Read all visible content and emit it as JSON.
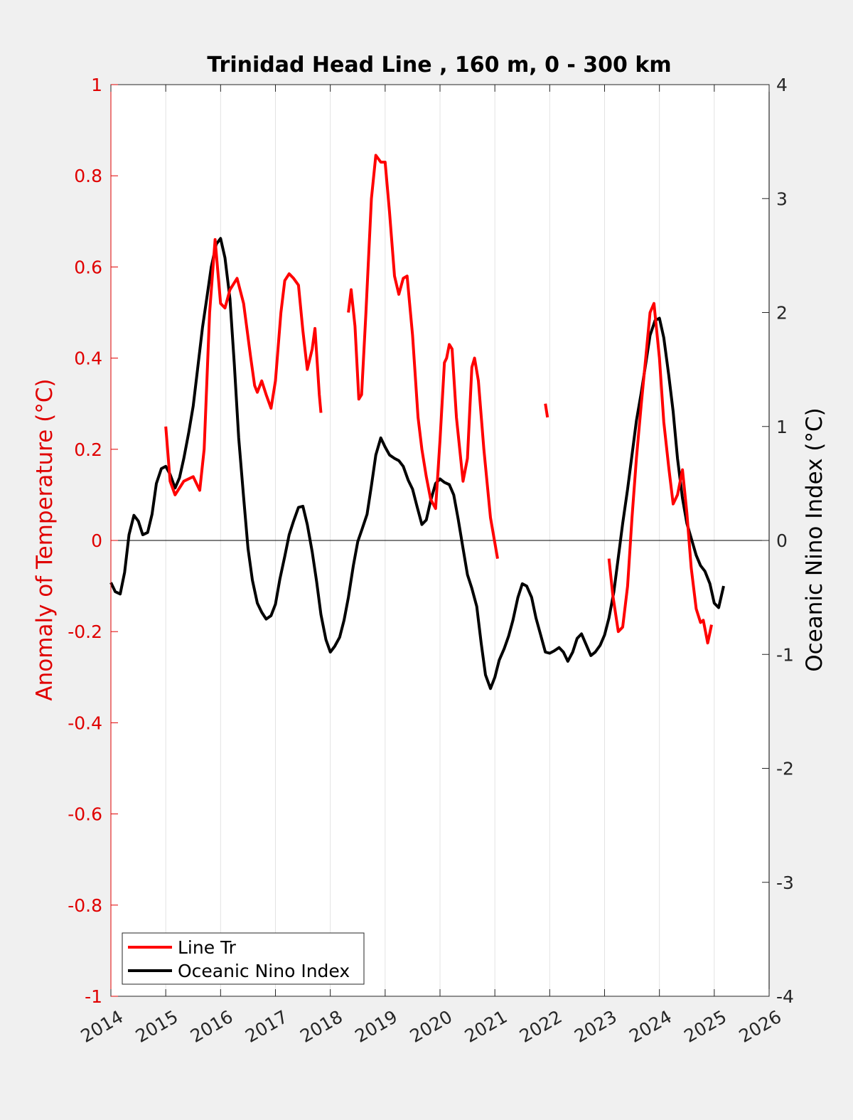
{
  "chart_data": {
    "type": "line",
    "title": "Trinidad Head Line , 160 m, 0 - 300 km",
    "xlabel": "",
    "ylabel_left": "Anomaly of Temperature (°C)",
    "ylabel_right": "Oceanic Nino Index (°C)",
    "xlim": [
      2014,
      2026
    ],
    "ylim_left": [
      -1,
      1
    ],
    "ylim_right": [
      -4,
      4
    ],
    "x_ticks": [
      "2014",
      "2015",
      "2016",
      "2017",
      "2018",
      "2019",
      "2020",
      "2021",
      "2022",
      "2023",
      "2024",
      "2025",
      "2026"
    ],
    "y_left_ticks": [
      "-1",
      "-0.8",
      "-0.6",
      "-0.4",
      "-0.2",
      "0",
      "0.2",
      "0.4",
      "0.6",
      "0.8",
      "1"
    ],
    "y_right_ticks": [
      "-4",
      "-3",
      "-2",
      "-1",
      "0",
      "1",
      "2",
      "3",
      "4"
    ],
    "grid": "vertical",
    "legend_position": "bottom-left",
    "zero_line": true,
    "colors": {
      "line_tr": "#ff0000",
      "oni": "#000000",
      "left_axis": "#e00000",
      "right_axis": "#000000"
    },
    "series": [
      {
        "name": "Line Tr",
        "axis": "left",
        "color": "#ff0000",
        "segments": [
          [
            [
              2015.0,
              0.25
            ],
            [
              2015.08,
              0.13
            ],
            [
              2015.17,
              0.1
            ],
            [
              2015.33,
              0.13
            ],
            [
              2015.5,
              0.14
            ],
            [
              2015.62,
              0.11
            ],
            [
              2015.7,
              0.2
            ],
            [
              2015.8,
              0.5
            ],
            [
              2015.9,
              0.66
            ],
            [
              2016.0,
              0.52
            ],
            [
              2016.08,
              0.51
            ],
            [
              2016.17,
              0.55
            ],
            [
              2016.3,
              0.575
            ],
            [
              2016.42,
              0.52
            ],
            [
              2016.55,
              0.4
            ],
            [
              2016.62,
              0.34
            ],
            [
              2016.67,
              0.325
            ],
            [
              2016.75,
              0.35
            ],
            [
              2016.83,
              0.32
            ],
            [
              2016.92,
              0.29
            ],
            [
              2017.0,
              0.35
            ],
            [
              2017.1,
              0.5
            ],
            [
              2017.17,
              0.57
            ],
            [
              2017.25,
              0.585
            ],
            [
              2017.33,
              0.575
            ],
            [
              2017.42,
              0.56
            ],
            [
              2017.5,
              0.46
            ],
            [
              2017.58,
              0.375
            ],
            [
              2017.67,
              0.42
            ],
            [
              2017.72,
              0.465
            ],
            [
              2017.8,
              0.32
            ],
            [
              2017.83,
              0.28
            ]
          ],
          [
            [
              2018.33,
              0.5
            ],
            [
              2018.38,
              0.55
            ],
            [
              2018.45,
              0.47
            ],
            [
              2018.52,
              0.31
            ],
            [
              2018.57,
              0.32
            ],
            [
              2018.65,
              0.5
            ],
            [
              2018.75,
              0.75
            ],
            [
              2018.83,
              0.845
            ],
            [
              2018.92,
              0.83
            ],
            [
              2019.0,
              0.83
            ],
            [
              2019.08,
              0.72
            ],
            [
              2019.17,
              0.58
            ],
            [
              2019.25,
              0.54
            ],
            [
              2019.33,
              0.575
            ],
            [
              2019.4,
              0.58
            ],
            [
              2019.5,
              0.45
            ],
            [
              2019.6,
              0.27
            ],
            [
              2019.67,
              0.2
            ],
            [
              2019.75,
              0.14
            ],
            [
              2019.83,
              0.09
            ],
            [
              2019.92,
              0.07
            ],
            [
              2020.0,
              0.22
            ],
            [
              2020.08,
              0.39
            ],
            [
              2020.12,
              0.4
            ],
            [
              2020.17,
              0.43
            ],
            [
              2020.22,
              0.42
            ],
            [
              2020.3,
              0.27
            ],
            [
              2020.42,
              0.13
            ],
            [
              2020.5,
              0.18
            ],
            [
              2020.58,
              0.38
            ],
            [
              2020.63,
              0.4
            ],
            [
              2020.7,
              0.35
            ],
            [
              2020.8,
              0.2
            ],
            [
              2020.92,
              0.05
            ],
            [
              2021.05,
              -0.04
            ]
          ],
          [
            [
              2021.92,
              0.3
            ],
            [
              2021.96,
              0.27
            ]
          ],
          [
            [
              2023.08,
              -0.04
            ],
            [
              2023.15,
              -0.12
            ],
            [
              2023.25,
              -0.2
            ],
            [
              2023.33,
              -0.19
            ],
            [
              2023.42,
              -0.1
            ],
            [
              2023.5,
              0.05
            ],
            [
              2023.58,
              0.18
            ],
            [
              2023.67,
              0.3
            ],
            [
              2023.75,
              0.4
            ],
            [
              2023.83,
              0.5
            ],
            [
              2023.9,
              0.52
            ],
            [
              2024.0,
              0.4
            ],
            [
              2024.08,
              0.26
            ],
            [
              2024.17,
              0.16
            ],
            [
              2024.25,
              0.08
            ],
            [
              2024.33,
              0.1
            ],
            [
              2024.42,
              0.155
            ],
            [
              2024.5,
              0.06
            ],
            [
              2024.58,
              -0.06
            ],
            [
              2024.67,
              -0.15
            ],
            [
              2024.75,
              -0.18
            ],
            [
              2024.8,
              -0.175
            ],
            [
              2024.88,
              -0.225
            ],
            [
              2024.95,
              -0.185
            ]
          ]
        ]
      },
      {
        "name": "Oceanic Nino Index",
        "axis": "right",
        "color": "#000000",
        "segments": [
          [
            [
              2014.0,
              -0.37
            ],
            [
              2014.08,
              -0.45
            ],
            [
              2014.17,
              -0.47
            ],
            [
              2014.25,
              -0.28
            ],
            [
              2014.33,
              0.05
            ],
            [
              2014.42,
              0.22
            ],
            [
              2014.5,
              0.17
            ],
            [
              2014.58,
              0.05
            ],
            [
              2014.67,
              0.07
            ],
            [
              2014.75,
              0.23
            ],
            [
              2014.83,
              0.5
            ],
            [
              2014.92,
              0.63
            ],
            [
              2015.0,
              0.65
            ],
            [
              2015.08,
              0.58
            ],
            [
              2015.17,
              0.46
            ],
            [
              2015.25,
              0.55
            ],
            [
              2015.33,
              0.72
            ],
            [
              2015.42,
              0.95
            ],
            [
              2015.5,
              1.18
            ],
            [
              2015.58,
              1.5
            ],
            [
              2015.67,
              1.87
            ],
            [
              2015.75,
              2.13
            ],
            [
              2015.83,
              2.4
            ],
            [
              2015.92,
              2.6
            ],
            [
              2016.0,
              2.65
            ],
            [
              2016.08,
              2.48
            ],
            [
              2016.17,
              2.12
            ],
            [
              2016.25,
              1.55
            ],
            [
              2016.33,
              0.9
            ],
            [
              2016.42,
              0.38
            ],
            [
              2016.5,
              -0.07
            ],
            [
              2016.58,
              -0.35
            ],
            [
              2016.67,
              -0.55
            ],
            [
              2016.75,
              -0.63
            ],
            [
              2016.83,
              -0.69
            ],
            [
              2016.92,
              -0.66
            ],
            [
              2017.0,
              -0.56
            ],
            [
              2017.08,
              -0.34
            ],
            [
              2017.17,
              -0.14
            ],
            [
              2017.25,
              0.05
            ],
            [
              2017.33,
              0.17
            ],
            [
              2017.42,
              0.29
            ],
            [
              2017.5,
              0.3
            ],
            [
              2017.58,
              0.14
            ],
            [
              2017.67,
              -0.1
            ],
            [
              2017.75,
              -0.36
            ],
            [
              2017.83,
              -0.65
            ],
            [
              2017.92,
              -0.87
            ],
            [
              2018.0,
              -0.98
            ],
            [
              2018.08,
              -0.93
            ],
            [
              2018.17,
              -0.85
            ],
            [
              2018.25,
              -0.7
            ],
            [
              2018.33,
              -0.5
            ],
            [
              2018.42,
              -0.22
            ],
            [
              2018.5,
              -0.01
            ],
            [
              2018.58,
              0.1
            ],
            [
              2018.67,
              0.23
            ],
            [
              2018.75,
              0.48
            ],
            [
              2018.83,
              0.75
            ],
            [
              2018.92,
              0.9
            ],
            [
              2019.0,
              0.82
            ],
            [
              2019.08,
              0.75
            ],
            [
              2019.17,
              0.72
            ],
            [
              2019.25,
              0.7
            ],
            [
              2019.33,
              0.65
            ],
            [
              2019.42,
              0.53
            ],
            [
              2019.5,
              0.45
            ],
            [
              2019.58,
              0.3
            ],
            [
              2019.67,
              0.14
            ],
            [
              2019.75,
              0.18
            ],
            [
              2019.83,
              0.35
            ],
            [
              2019.92,
              0.5
            ],
            [
              2020.0,
              0.54
            ],
            [
              2020.08,
              0.51
            ],
            [
              2020.17,
              0.49
            ],
            [
              2020.25,
              0.4
            ],
            [
              2020.33,
              0.19
            ],
            [
              2020.42,
              -0.07
            ],
            [
              2020.5,
              -0.3
            ],
            [
              2020.58,
              -0.42
            ],
            [
              2020.67,
              -0.58
            ],
            [
              2020.75,
              -0.9
            ],
            [
              2020.83,
              -1.18
            ],
            [
              2020.92,
              -1.3
            ],
            [
              2021.0,
              -1.2
            ],
            [
              2021.08,
              -1.05
            ],
            [
              2021.17,
              -0.95
            ],
            [
              2021.25,
              -0.84
            ],
            [
              2021.33,
              -0.7
            ],
            [
              2021.42,
              -0.5
            ],
            [
              2021.5,
              -0.38
            ],
            [
              2021.58,
              -0.4
            ],
            [
              2021.67,
              -0.5
            ],
            [
              2021.75,
              -0.68
            ],
            [
              2021.83,
              -0.82
            ],
            [
              2021.92,
              -0.98
            ],
            [
              2022.0,
              -0.99
            ],
            [
              2022.08,
              -0.97
            ],
            [
              2022.17,
              -0.94
            ],
            [
              2022.25,
              -0.98
            ],
            [
              2022.33,
              -1.06
            ],
            [
              2022.42,
              -0.98
            ],
            [
              2022.5,
              -0.86
            ],
            [
              2022.58,
              -0.82
            ],
            [
              2022.67,
              -0.92
            ],
            [
              2022.75,
              -1.01
            ],
            [
              2022.83,
              -0.98
            ],
            [
              2022.92,
              -0.92
            ],
            [
              2023.0,
              -0.83
            ],
            [
              2023.08,
              -0.68
            ],
            [
              2023.17,
              -0.45
            ],
            [
              2023.25,
              -0.15
            ],
            [
              2023.33,
              0.15
            ],
            [
              2023.42,
              0.45
            ],
            [
              2023.5,
              0.75
            ],
            [
              2023.58,
              1.05
            ],
            [
              2023.67,
              1.3
            ],
            [
              2023.75,
              1.55
            ],
            [
              2023.83,
              1.8
            ],
            [
              2023.92,
              1.93
            ],
            [
              2024.0,
              1.95
            ],
            [
              2024.08,
              1.78
            ],
            [
              2024.17,
              1.45
            ],
            [
              2024.25,
              1.13
            ],
            [
              2024.33,
              0.72
            ],
            [
              2024.42,
              0.37
            ],
            [
              2024.5,
              0.15
            ],
            [
              2024.58,
              0.02
            ],
            [
              2024.67,
              -0.13
            ],
            [
              2024.75,
              -0.22
            ],
            [
              2024.83,
              -0.27
            ],
            [
              2024.92,
              -0.38
            ],
            [
              2025.0,
              -0.55
            ],
            [
              2025.08,
              -0.59
            ],
            [
              2025.17,
              -0.4
            ]
          ]
        ]
      }
    ]
  }
}
